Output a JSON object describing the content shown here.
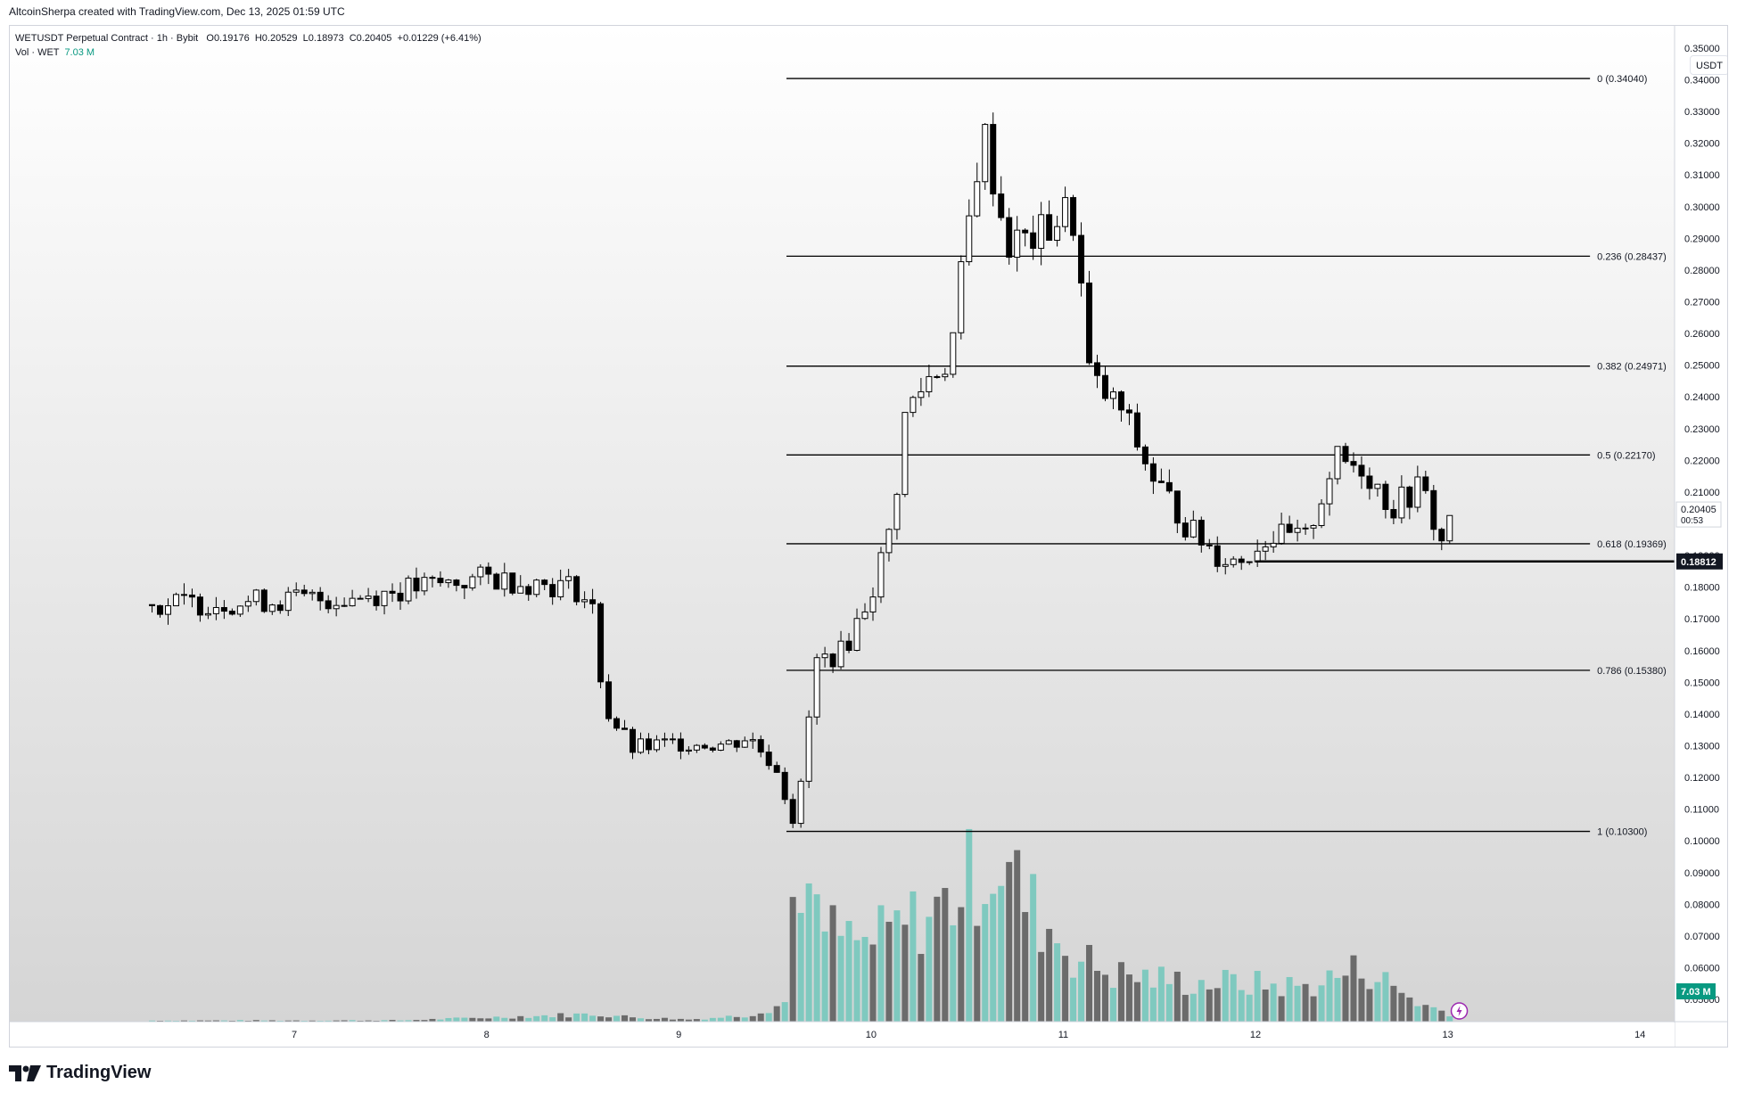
{
  "header": {
    "published_by": "AltcoinSherpa created with TradingView.com, Dec 13, 2025 01:59 UTC"
  },
  "legend": {
    "symbol_line": "WETUSDT Perpetual Contract · 1h · Bybit",
    "open_label": "O",
    "open": "0.19176",
    "high_label": "H",
    "high": "0.20529",
    "low_label": "L",
    "low": "0.18973",
    "close_label": "C",
    "close": "0.20405",
    "change": "+0.01229 (+6.41%)",
    "vol_label": "Vol · WET",
    "vol_value": "7.03 M"
  },
  "toolbar": {
    "currency": "USDT"
  },
  "price_axis": {
    "current_price": "0.20405",
    "countdown": "00:53",
    "line_price": "0.18812",
    "volume_badge": "7.03 M"
  },
  "brand": {
    "logo_text": "TradingView"
  },
  "colors": {
    "up_volume": "#7fc9bf",
    "down_volume": "#6b6b6b",
    "candle_up": "#ffffff",
    "candle_down": "#000000",
    "fib_line": "#000000",
    "current_price_bg": "#ffffff",
    "line_price_bg": "#131722",
    "volume_badge_bg": "#089981"
  },
  "chart_data": {
    "type": "candlestick",
    "symbol": "WETUSDT Perpetual Contract",
    "interval": "1h",
    "exchange": "Bybit",
    "ylim": [
      0.043,
      0.357
    ],
    "y_ticks": [
      "0.35000",
      "0.34000",
      "0.33000",
      "0.32000",
      "0.31000",
      "0.30000",
      "0.29000",
      "0.28000",
      "0.27000",
      "0.26000",
      "0.25000",
      "0.24000",
      "0.23000",
      "0.22000",
      "0.21000",
      "0.20000",
      "0.19000",
      "0.18000",
      "0.17000",
      "0.16000",
      "0.15000",
      "0.14000",
      "0.13000",
      "0.12000",
      "0.11000",
      "0.10000",
      "0.09000",
      "0.08000",
      "0.07000",
      "0.06000",
      "0.05000"
    ],
    "x_ticks": [
      {
        "label": "7",
        "t": 0.74
      },
      {
        "label": "8",
        "t": 1.74
      },
      {
        "label": "9",
        "t": 2.74
      },
      {
        "label": "10",
        "t": 3.74
      },
      {
        "label": "11",
        "t": 4.74
      },
      {
        "label": "12",
        "t": 5.74
      },
      {
        "label": "13",
        "t": 6.74
      },
      {
        "label": "14",
        "t": 7.74
      }
    ],
    "fib_levels": [
      {
        "ratio": "0",
        "price": 0.3404,
        "label": "0 (0.34040)"
      },
      {
        "ratio": "0.236",
        "price": 0.28437,
        "label": "0.236 (0.28437)"
      },
      {
        "ratio": "0.382",
        "price": 0.24971,
        "label": "0.382 (0.24971)"
      },
      {
        "ratio": "0.5",
        "price": 0.2217,
        "label": "0.5 (0.22170)"
      },
      {
        "ratio": "0.618",
        "price": 0.19369,
        "label": "0.618 (0.19369)"
      },
      {
        "ratio": "0.786",
        "price": 0.1538,
        "label": "0.786 (0.15380)"
      },
      {
        "ratio": "1",
        "price": 0.103,
        "label": "1 (0.10300)"
      }
    ],
    "fib_range": {
      "t_start": 3.3,
      "t_end": 7.48
    },
    "horizontal_line": {
      "price": 0.18812,
      "t_start": 5.74
    },
    "volume_scale_max": 1.0,
    "keypoints": [
      [
        0.0,
        0.1745
      ],
      [
        1.0,
        0.1765
      ],
      [
        1.75,
        0.183
      ],
      [
        2.2,
        0.18
      ],
      [
        2.3,
        0.172
      ],
      [
        2.35,
        0.142
      ],
      [
        2.5,
        0.129
      ],
      [
        2.75,
        0.131
      ],
      [
        3.0,
        0.1305
      ],
      [
        3.1,
        0.133
      ],
      [
        3.25,
        0.123
      ],
      [
        3.35,
        0.1038
      ],
      [
        3.45,
        0.156
      ],
      [
        3.6,
        0.16
      ],
      [
        3.75,
        0.18
      ],
      [
        3.85,
        0.2
      ],
      [
        3.92,
        0.235
      ],
      [
        4.05,
        0.247
      ],
      [
        4.15,
        0.252
      ],
      [
        4.25,
        0.295
      ],
      [
        4.32,
        0.325
      ],
      [
        4.45,
        0.288
      ],
      [
        4.6,
        0.29
      ],
      [
        4.75,
        0.298
      ],
      [
        4.8,
        0.295
      ],
      [
        4.88,
        0.245
      ],
      [
        5.05,
        0.235
      ],
      [
        5.2,
        0.215
      ],
      [
        5.4,
        0.198
      ],
      [
        5.55,
        0.19
      ],
      [
        5.65,
        0.188
      ],
      [
        5.8,
        0.196
      ],
      [
        6.0,
        0.195
      ],
      [
        6.15,
        0.22
      ],
      [
        6.3,
        0.218
      ],
      [
        6.45,
        0.205
      ],
      [
        6.6,
        0.212
      ],
      [
        6.73,
        0.19
      ],
      [
        6.75,
        0.204
      ]
    ],
    "volume_profile": [
      [
        0.0,
        0.005
      ],
      [
        1.3,
        0.006
      ],
      [
        2.3,
        0.035
      ],
      [
        2.5,
        0.02
      ],
      [
        2.8,
        0.01
      ],
      [
        3.1,
        0.03
      ],
      [
        3.3,
        0.09
      ],
      [
        3.35,
        0.8
      ],
      [
        3.45,
        0.45
      ],
      [
        3.7,
        0.35
      ],
      [
        3.85,
        0.42
      ],
      [
        4.1,
        0.52
      ],
      [
        4.3,
        0.7
      ],
      [
        4.4,
        0.76
      ],
      [
        4.6,
        0.5
      ],
      [
        4.8,
        0.3
      ],
      [
        5.0,
        0.22
      ],
      [
        5.4,
        0.18
      ],
      [
        5.6,
        0.18
      ],
      [
        6.0,
        0.16
      ],
      [
        6.3,
        0.25
      ],
      [
        6.6,
        0.08
      ],
      [
        6.75,
        0.04
      ]
    ]
  }
}
